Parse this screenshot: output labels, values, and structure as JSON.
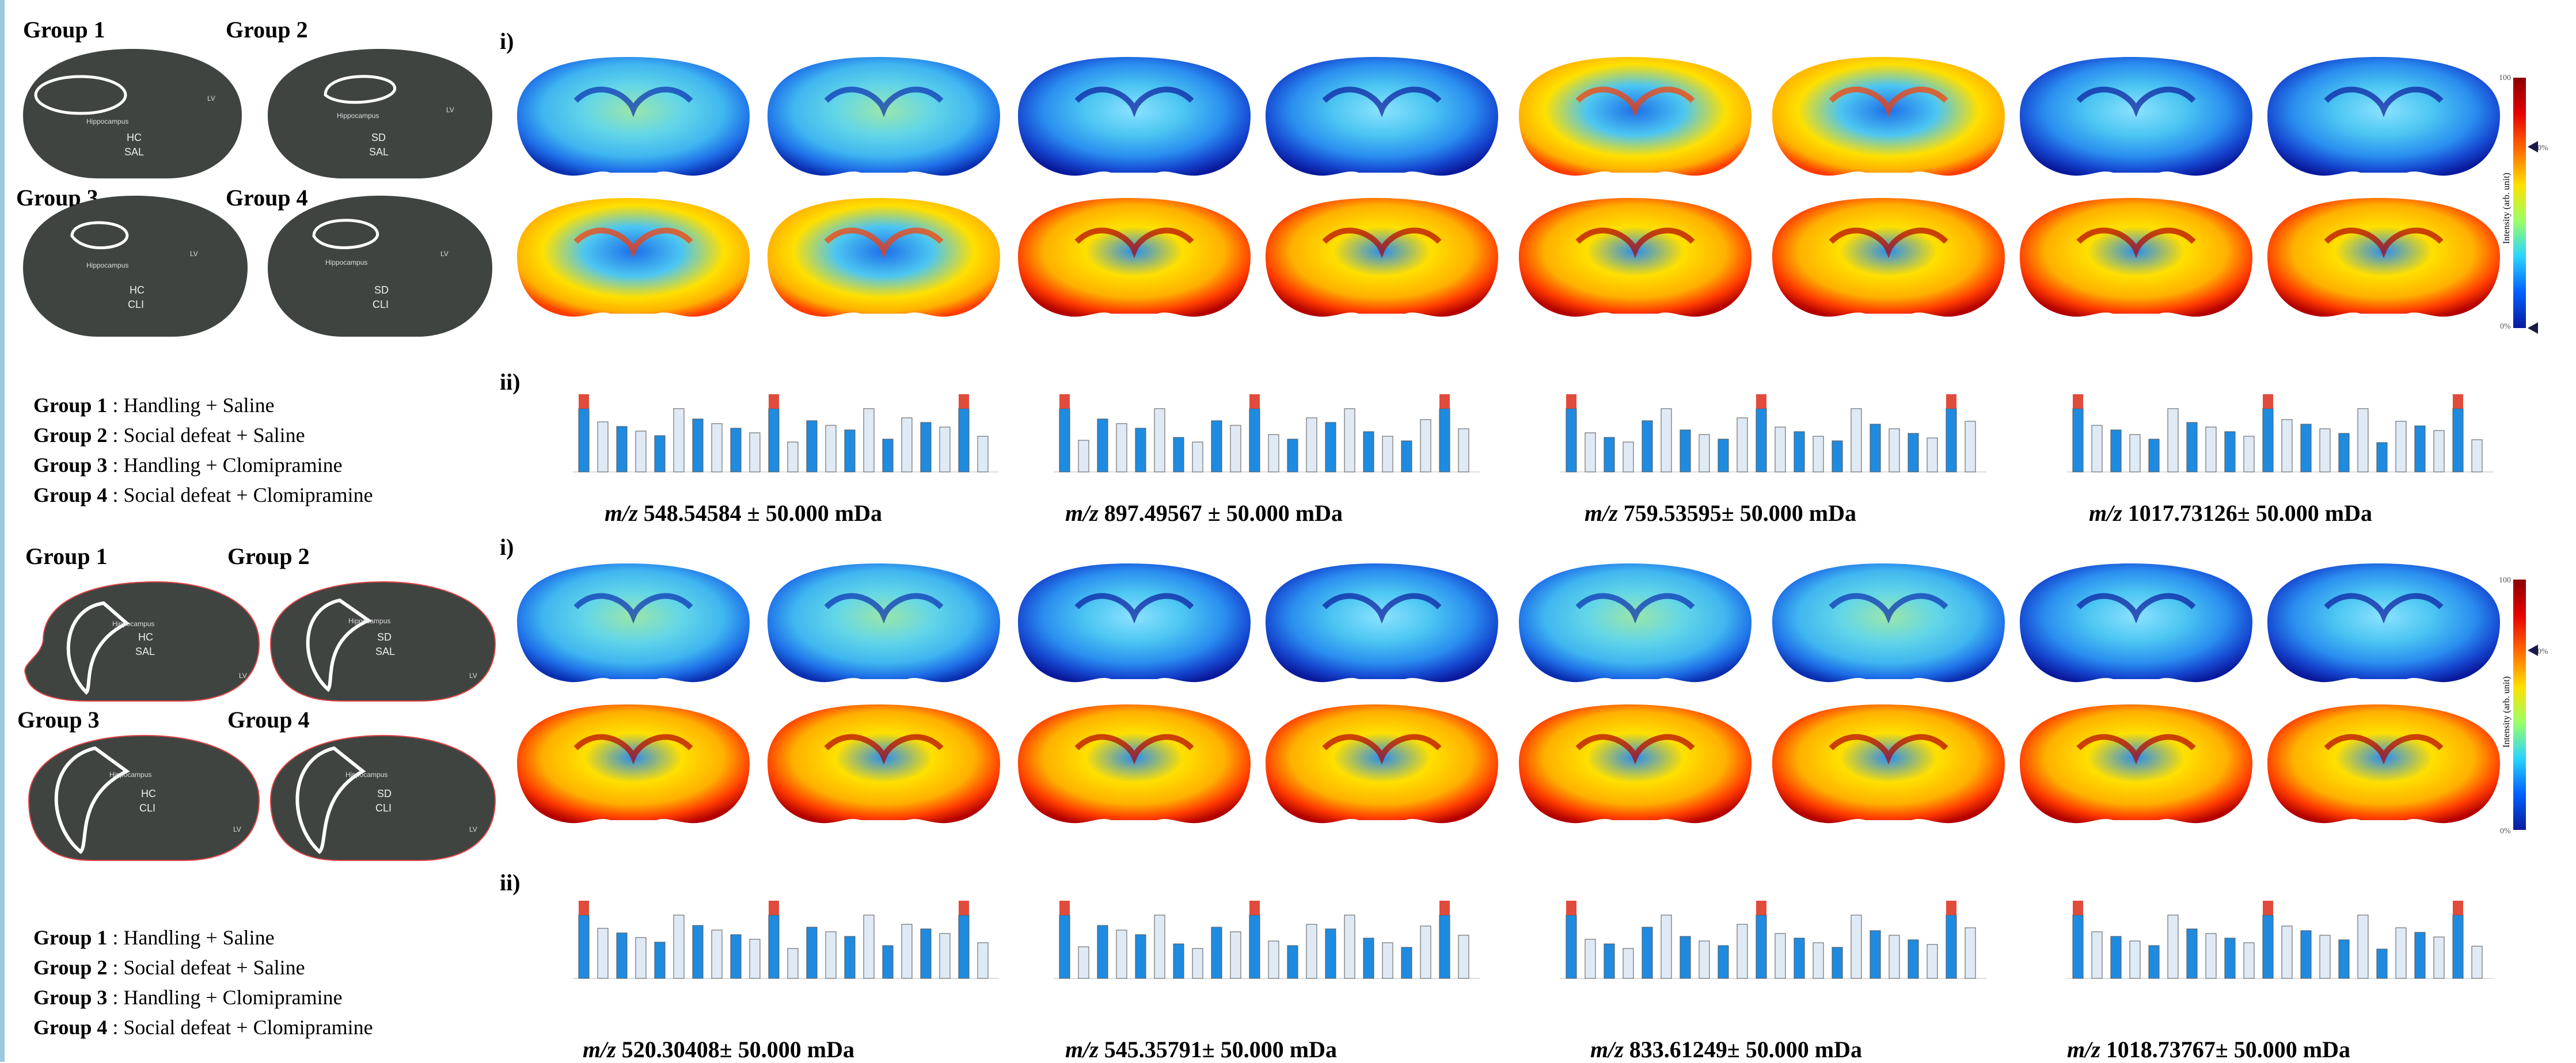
{
  "top": {
    "group_labels": [
      "Group 1",
      "Group 2",
      "Group 3",
      "Group 4"
    ],
    "region_labels": [
      "Hippocampus",
      "LV"
    ],
    "slice_codes": [
      [
        "HC",
        "SAL"
      ],
      [
        "SD",
        "SAL"
      ],
      [
        "HC",
        "CLI"
      ],
      [
        "SD",
        "CLI"
      ]
    ],
    "legend": [
      {
        "group": "Group 1",
        "desc": ": Handling + Saline"
      },
      {
        "group": "Group 2",
        "desc": ": Social defeat + Saline"
      },
      {
        "group": "Group 3",
        "desc": ": Handling + Clomipramine"
      },
      {
        "group": "Group 4",
        "desc": ": Social defeat + Clomipramine"
      }
    ],
    "panel_i": "i)",
    "panel_ii": "ii)",
    "mz": [
      "548.54584  ± 50.000 mDa",
      "897.49567  ± 50.000 mDa",
      "759.53595± 50.000 mDa",
      "1017.73126± 50.000 mDa"
    ],
    "mz_prefix": "m/z",
    "scale": {
      "top": "100",
      "mid": "70%",
      "bottom": "0%",
      "axis": "Intensity (arb. unit)"
    }
  },
  "bottom": {
    "group_labels": [
      "Group 1",
      "Group 2",
      "Group 3",
      "Group 4"
    ],
    "region_labels": [
      "Hippocampus",
      "LV"
    ],
    "slice_codes": [
      [
        "HC",
        "SAL"
      ],
      [
        "SD",
        "SAL"
      ],
      [
        "HC",
        "CLI"
      ],
      [
        "SD",
        "CLI"
      ]
    ],
    "legend": [
      {
        "group": "Group 1",
        "desc": ": Handling + Saline"
      },
      {
        "group": "Group 2",
        "desc": ": Social defeat + Saline"
      },
      {
        "group": "Group 3",
        "desc": ": Handling + Clomipramine"
      },
      {
        "group": "Group 4",
        "desc": ": Social defeat + Clomipramine"
      }
    ],
    "panel_i": "i)",
    "panel_ii": "ii)",
    "mz": [
      "520.30408± 50.000 mDa",
      "545.35791± 50.000 mDa",
      "833.61249± 50.000 mDa",
      "1018.73767± 50.000 mDa"
    ],
    "mz_prefix": "m/z",
    "scale": {
      "top": "100",
      "mid": "70%",
      "bottom": "0%",
      "axis": "Intensity (arb. unit)"
    }
  },
  "colors": {
    "slide_bg": "#3f4441",
    "blue": "#1e8be0",
    "red": "#e14b3c",
    "heat_low": "#0a1a9c",
    "heat_mid": "#2ad4ff",
    "heat_hi": "#ffe000",
    "heat_max": "#b30000"
  }
}
